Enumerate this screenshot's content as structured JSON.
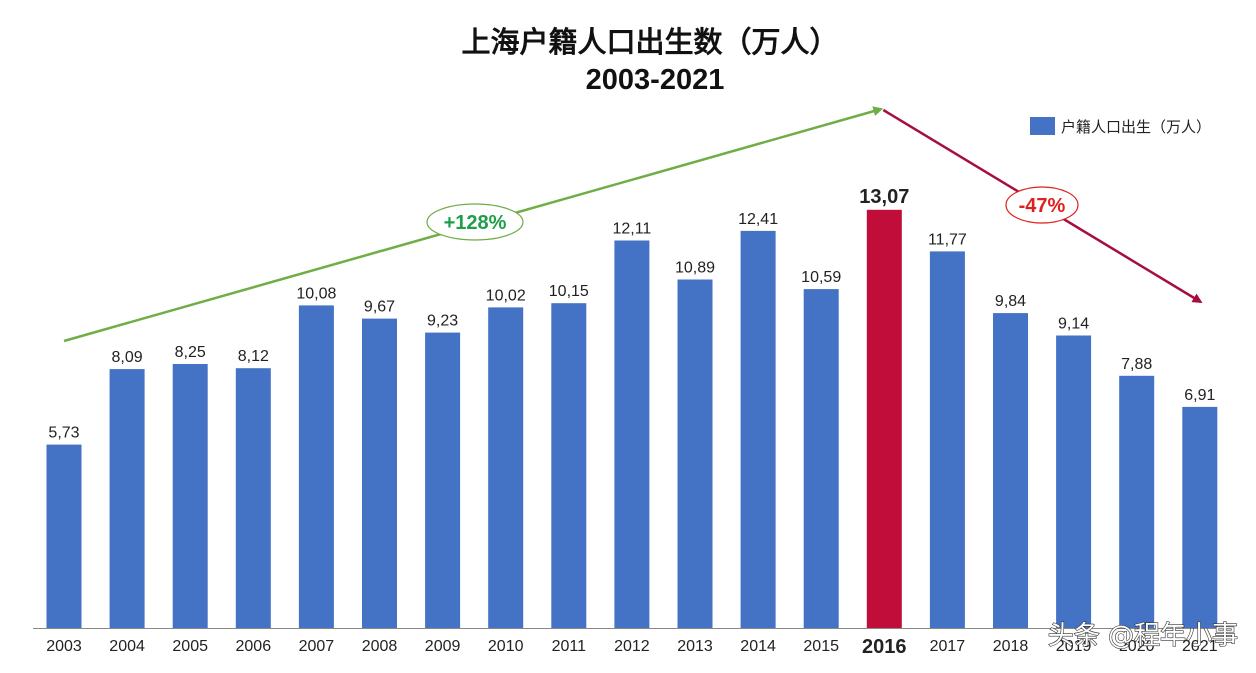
{
  "chart_data": {
    "type": "bar",
    "title": "上海户籍人口出生数（万人）",
    "subtitle": "2003-2021",
    "categories": [
      "2003",
      "2004",
      "2005",
      "2006",
      "2007",
      "2008",
      "2009",
      "2010",
      "2011",
      "2012",
      "2013",
      "2014",
      "2015",
      "2016",
      "2017",
      "2018",
      "2019",
      "2020",
      "2021"
    ],
    "value_labels": [
      "5,73",
      "8,09",
      "8,25",
      "8,12",
      "10,08",
      "9,67",
      "9,23",
      "10,02",
      "10,15",
      "12,11",
      "10,89",
      "12,41",
      "10,59",
      "13,07",
      "11,77",
      "9,84",
      "9,14",
      "7,88",
      "6,91"
    ],
    "series": [
      {
        "name": "户籍人口出生（万人）",
        "values": [
          5.73,
          8.09,
          8.25,
          8.12,
          10.08,
          9.67,
          9.23,
          10.02,
          10.15,
          12.11,
          10.89,
          12.41,
          10.59,
          13.07,
          11.77,
          9.84,
          9.14,
          7.88,
          6.91
        ],
        "color": "#4472C4"
      }
    ],
    "highlight": {
      "category": "2016",
      "color": "#C00D3A"
    },
    "ylim": [
      0,
      14.5
    ],
    "grid": false,
    "legend": {
      "position": "top-right"
    },
    "annotations": [
      {
        "text": "+128%",
        "from": "2003",
        "to": "2016",
        "color": "#70AD47",
        "text_color": "#1E9E4A",
        "direction": "up"
      },
      {
        "text": "-47%",
        "from": "2016",
        "to": "2021",
        "color": "#A50F3D",
        "text_color": "#E0201E",
        "direction": "down"
      }
    ]
  },
  "watermark": "头条 @程年小事"
}
